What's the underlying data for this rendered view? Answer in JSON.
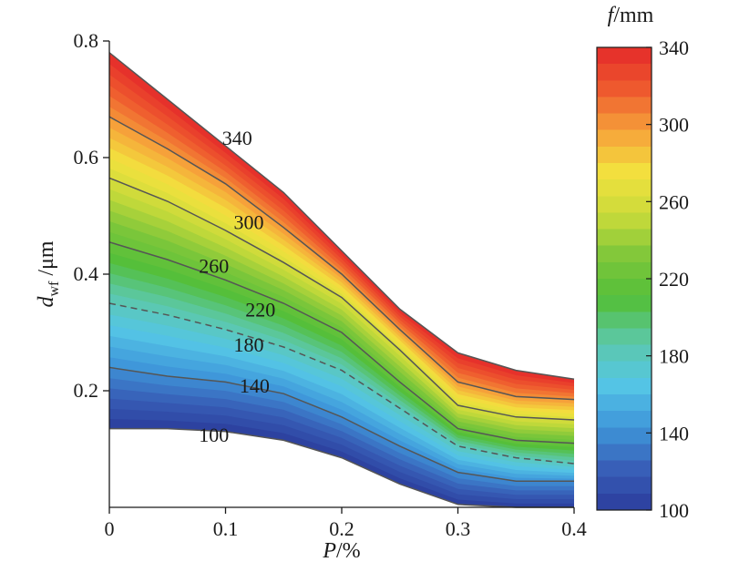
{
  "chart_data": {
    "type": "heatmap",
    "subtype": "filled-contour",
    "xlabel_italic": "P",
    "xlabel_unit": "/%",
    "ylabel_italic": "d",
    "ylabel_sub": "wf",
    "ylabel_unit": " /μm",
    "colorbar_title_italic": "f",
    "colorbar_title_unit": "/mm",
    "xlim": [
      0,
      0.4
    ],
    "ylim": [
      0,
      0.8
    ],
    "x_ticks": [
      0,
      0.1,
      0.2,
      0.3,
      0.4
    ],
    "x_tick_labels": [
      "0",
      "0.1",
      "0.2",
      "0.3",
      "0.4"
    ],
    "y_ticks": [
      0.2,
      0.4,
      0.6,
      0.8
    ],
    "y_tick_labels": [
      "0.2",
      "0.4",
      "0.6",
      "0.8"
    ],
    "colorbar_range": [
      100,
      340
    ],
    "colorbar_ticks": [
      100,
      140,
      180,
      220,
      260,
      300,
      340
    ],
    "colorbar_tick_labels": [
      "100",
      "140",
      "180",
      "220",
      "260",
      "300",
      "340"
    ],
    "colorscale": [
      "#2b3c9c",
      "#3860b8",
      "#3f98da",
      "#55c6e6",
      "#5cc8a8",
      "#53bf3a",
      "#7cc63a",
      "#c8da3a",
      "#f3e23e",
      "#f6a23a",
      "#ee5a2e",
      "#e42a2a"
    ],
    "x": [
      0,
      0.05,
      0.1,
      0.15,
      0.2,
      0.25,
      0.3,
      0.35,
      0.4
    ],
    "domain_lower": [
      0.135,
      0.135,
      0.13,
      0.115,
      0.085,
      0.04,
      0.005,
      0.0,
      0.0
    ],
    "domain_upper": [
      0.78,
      0.7,
      0.62,
      0.54,
      0.44,
      0.34,
      0.265,
      0.235,
      0.22
    ],
    "contours": [
      {
        "level": 100,
        "label": "100",
        "dashed": false,
        "y": [
          0.135,
          0.135,
          0.13,
          0.115,
          0.085,
          0.04,
          0.005,
          0.0,
          0.0
        ]
      },
      {
        "level": 140,
        "label": "140",
        "dashed": false,
        "y": [
          0.24,
          0.225,
          0.215,
          0.195,
          0.155,
          0.105,
          0.06,
          0.045,
          0.045
        ]
      },
      {
        "level": 180,
        "label": "180",
        "dashed": true,
        "y": [
          0.35,
          0.33,
          0.305,
          0.275,
          0.235,
          0.17,
          0.105,
          0.085,
          0.075
        ]
      },
      {
        "level": 220,
        "label": "220",
        "dashed": false,
        "y": [
          0.455,
          0.425,
          0.39,
          0.35,
          0.3,
          0.215,
          0.135,
          0.115,
          0.11
        ]
      },
      {
        "level": 260,
        "label": "260",
        "dashed": false,
        "y": [
          0.565,
          0.525,
          0.475,
          0.42,
          0.36,
          0.27,
          0.175,
          0.155,
          0.15
        ]
      },
      {
        "level": 300,
        "label": "300",
        "dashed": false,
        "y": [
          0.67,
          0.615,
          0.555,
          0.48,
          0.4,
          0.305,
          0.215,
          0.19,
          0.185
        ]
      },
      {
        "level": 340,
        "label": "340",
        "dashed": false,
        "y": [
          0.78,
          0.7,
          0.62,
          0.54,
          0.44,
          0.34,
          0.265,
          0.235,
          0.22
        ]
      }
    ],
    "contour_label_positions": [
      {
        "label": "340",
        "x": 0.11,
        "y": 0.63
      },
      {
        "label": "300",
        "x": 0.12,
        "y": 0.485
      },
      {
        "label": "260",
        "x": 0.09,
        "y": 0.41
      },
      {
        "label": "220",
        "x": 0.13,
        "y": 0.335
      },
      {
        "label": "180",
        "x": 0.12,
        "y": 0.275
      },
      {
        "label": "140",
        "x": 0.125,
        "y": 0.205
      },
      {
        "label": "100",
        "x": 0.09,
        "y": 0.12
      }
    ]
  }
}
